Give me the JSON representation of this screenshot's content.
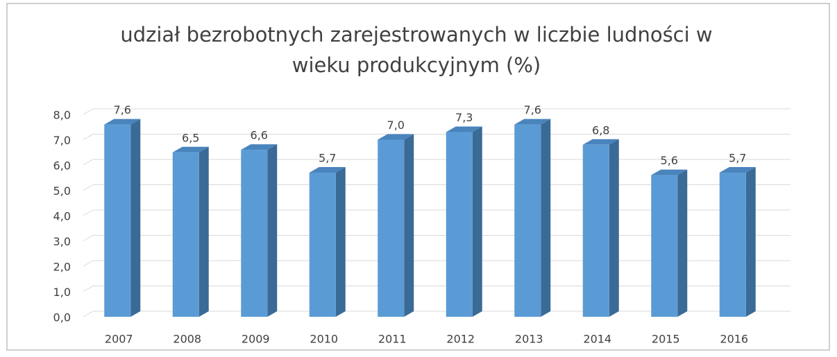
{
  "chart_data": {
    "type": "bar3d",
    "title": [
      "udział bezrobotnych zarejestrowanych w liczbie ludności w",
      "wieku produkcyjnym (%)"
    ],
    "categories": [
      "2007",
      "2008",
      "2009",
      "2010",
      "2011",
      "2012",
      "2013",
      "2014",
      "2015",
      "2016"
    ],
    "values": [
      7.6,
      6.5,
      6.6,
      5.7,
      7.0,
      7.3,
      7.6,
      6.8,
      5.6,
      5.7
    ],
    "value_labels": [
      "7,6",
      "6,5",
      "6,6",
      "5,7",
      "7,0",
      "7,3",
      "7,6",
      "6,8",
      "5,6",
      "5,7"
    ],
    "color": "#5b9bd5",
    "ylim": [
      0,
      8
    ],
    "yticks": [
      {
        "value": 0,
        "label": "0,0"
      },
      {
        "value": 1,
        "label": "1,0"
      },
      {
        "value": 2,
        "label": "2,0"
      },
      {
        "value": 3,
        "label": "3,0"
      },
      {
        "value": 4,
        "label": "4,0"
      },
      {
        "value": 5,
        "label": "5,0"
      },
      {
        "value": 6,
        "label": "6,0"
      },
      {
        "value": 7,
        "label": "7,0"
      },
      {
        "value": 8,
        "label": "8,0"
      }
    ],
    "grid": true
  }
}
